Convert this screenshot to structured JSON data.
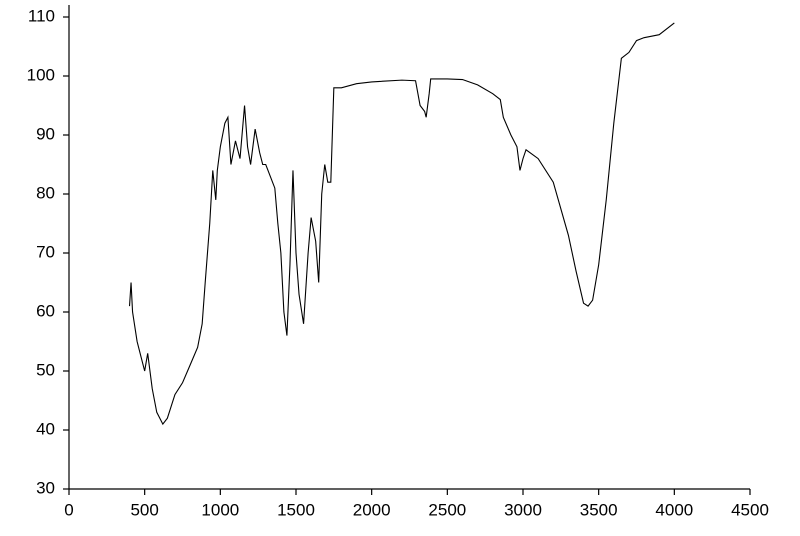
{
  "chart_data": {
    "type": "line",
    "x": [
      400,
      410,
      420,
      450,
      480,
      500,
      520,
      550,
      580,
      620,
      650,
      700,
      750,
      800,
      850,
      880,
      900,
      930,
      950,
      970,
      980,
      1000,
      1030,
      1050,
      1070,
      1100,
      1130,
      1160,
      1180,
      1200,
      1230,
      1260,
      1280,
      1300,
      1330,
      1360,
      1380,
      1400,
      1420,
      1440,
      1460,
      1480,
      1500,
      1520,
      1550,
      1580,
      1600,
      1630,
      1650,
      1670,
      1690,
      1710,
      1730,
      1750,
      1800,
      1900,
      2000,
      2200,
      2290,
      2320,
      2350,
      2360,
      2380,
      2390,
      2500,
      2600,
      2700,
      2800,
      2850,
      2870,
      2920,
      2960,
      2980,
      3000,
      3020,
      3100,
      3200,
      3300,
      3350,
      3400,
      3430,
      3460,
      3500,
      3550,
      3600,
      3650,
      3700,
      3750,
      3800,
      3900,
      4000
    ],
    "series": [
      {
        "color": "#000000",
        "values": [
          61,
          65,
          60,
          55,
          52,
          50,
          53,
          47,
          43,
          41,
          42,
          46,
          48,
          51,
          54,
          58,
          65,
          75,
          84,
          79,
          84,
          88,
          92,
          93,
          85,
          89,
          86,
          95,
          88,
          85,
          91,
          87,
          85,
          85,
          83,
          81,
          75,
          70,
          60,
          56,
          68,
          84,
          70,
          63,
          58,
          70,
          76,
          72,
          65,
          80,
          85,
          82,
          82,
          98,
          98,
          98.7,
          99,
          99.3,
          99.2,
          95,
          94,
          93,
          97,
          99.5,
          99.5,
          99.4,
          98.5,
          97,
          96,
          93,
          90,
          88,
          84,
          86,
          87.5,
          86,
          82,
          73,
          67,
          61.5,
          61,
          62,
          68,
          79,
          92,
          103,
          104,
          106,
          106.5,
          107,
          109
        ]
      }
    ],
    "xlim": [
      0,
      4500
    ],
    "xticks": [
      0,
      500,
      1000,
      1500,
      2000,
      2500,
      3000,
      3500,
      4000,
      4500
    ],
    "ylim": [
      30,
      110
    ],
    "yticks": [
      30,
      40,
      50,
      60,
      70,
      80,
      90,
      100,
      110
    ]
  }
}
